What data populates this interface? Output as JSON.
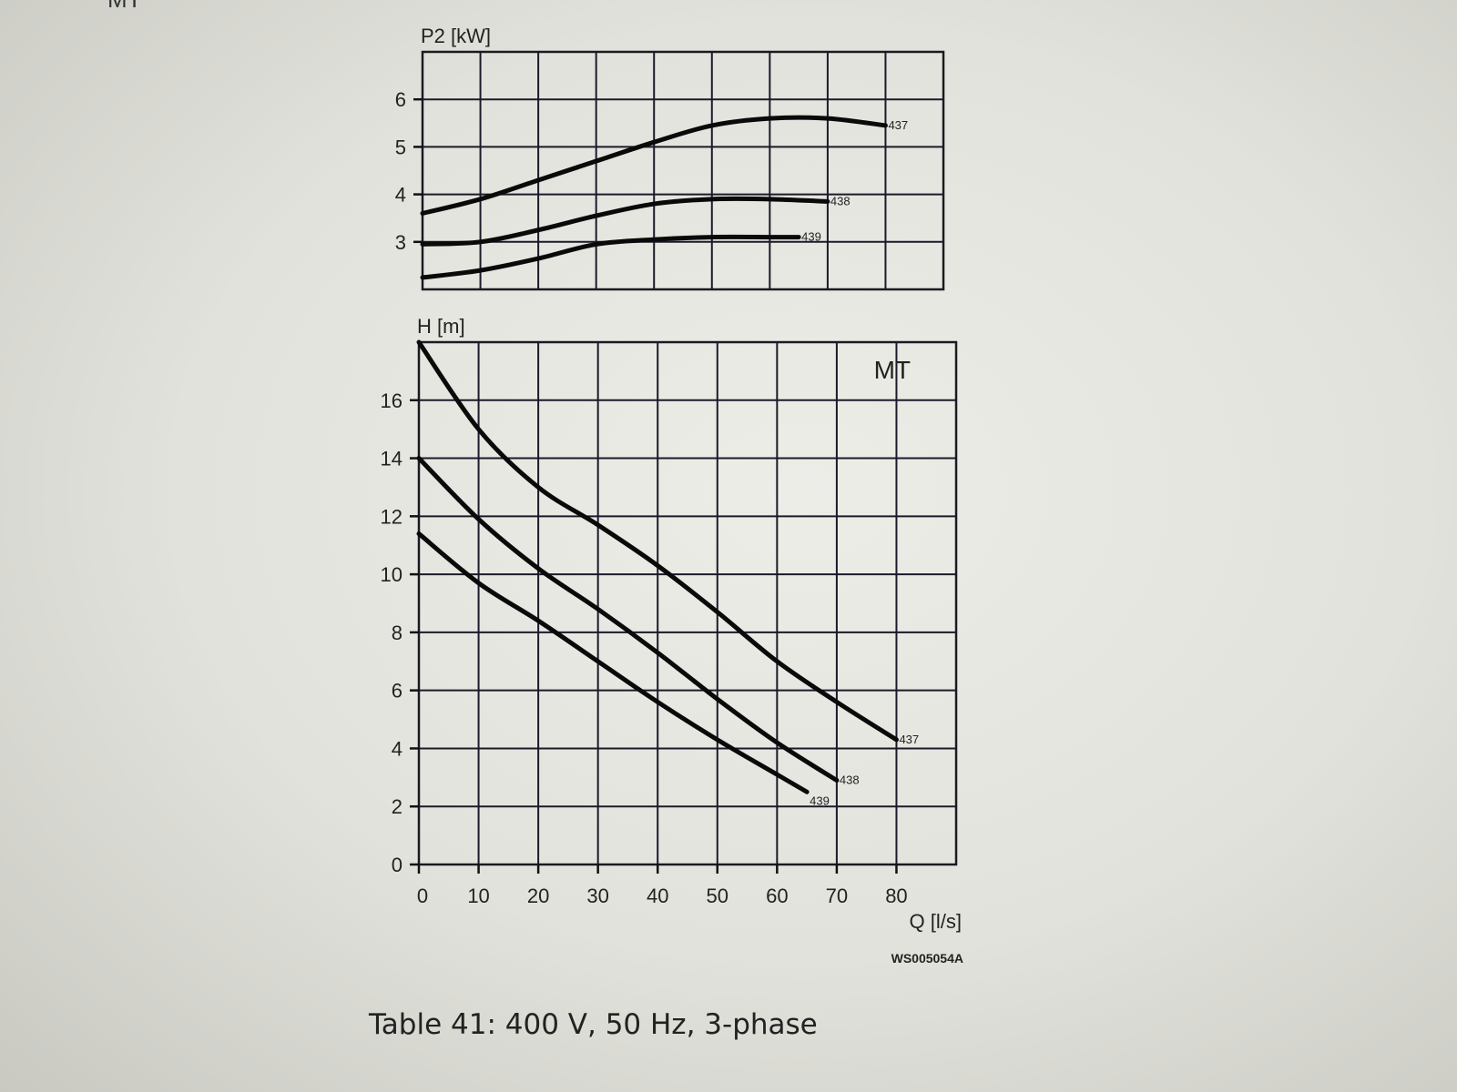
{
  "page": {
    "cut_heading": "MT",
    "caption": "Table 41: 400 V, 50 Hz, 3-phase",
    "drawing_code": "WS005054A"
  },
  "chart_data": [
    {
      "type": "line",
      "ylabel": "P2 [kW]",
      "ylabel_main": "P",
      "ylabel_sub": "2",
      "ylabel_unit": "[kW]",
      "xlim": [
        0,
        90
      ],
      "ylim": [
        2,
        7
      ],
      "yticks": [
        3,
        4,
        5,
        6
      ],
      "grid": true,
      "series": [
        {
          "name": "437",
          "x": [
            0,
            10,
            20,
            30,
            40,
            50,
            60,
            70,
            80
          ],
          "y": [
            3.6,
            3.9,
            4.3,
            4.7,
            5.1,
            5.45,
            5.6,
            5.6,
            5.45
          ]
        },
        {
          "name": "438",
          "x": [
            0,
            10,
            20,
            30,
            40,
            50,
            60,
            70
          ],
          "y": [
            2.95,
            3.0,
            3.25,
            3.55,
            3.8,
            3.9,
            3.9,
            3.85
          ]
        },
        {
          "name": "439",
          "x": [
            0,
            10,
            20,
            30,
            40,
            50,
            60,
            65
          ],
          "y": [
            2.25,
            2.4,
            2.65,
            2.95,
            3.05,
            3.1,
            3.1,
            3.1
          ]
        }
      ]
    },
    {
      "type": "line",
      "title": "MT",
      "ylabel": "H [m]",
      "xlabel": "Q [l/s]",
      "xlim": [
        0,
        90
      ],
      "ylim": [
        0,
        18
      ],
      "xticks": [
        0,
        10,
        20,
        30,
        40,
        50,
        60,
        70,
        80
      ],
      "yticks": [
        0,
        2,
        4,
        6,
        8,
        10,
        12,
        14,
        16
      ],
      "grid": true,
      "series": [
        {
          "name": "437",
          "x": [
            0,
            10,
            20,
            30,
            40,
            50,
            60,
            70,
            80
          ],
          "y": [
            18,
            15,
            13,
            11.7,
            10.3,
            8.7,
            7.0,
            5.6,
            4.3
          ]
        },
        {
          "name": "438",
          "x": [
            0,
            10,
            20,
            30,
            40,
            50,
            60,
            70
          ],
          "y": [
            14,
            11.9,
            10.2,
            8.8,
            7.3,
            5.7,
            4.2,
            2.9
          ]
        },
        {
          "name": "439",
          "x": [
            0,
            10,
            20,
            30,
            40,
            50,
            60,
            65
          ],
          "y": [
            11.4,
            9.7,
            8.4,
            7.0,
            5.6,
            4.3,
            3.1,
            2.5
          ]
        }
      ]
    }
  ]
}
